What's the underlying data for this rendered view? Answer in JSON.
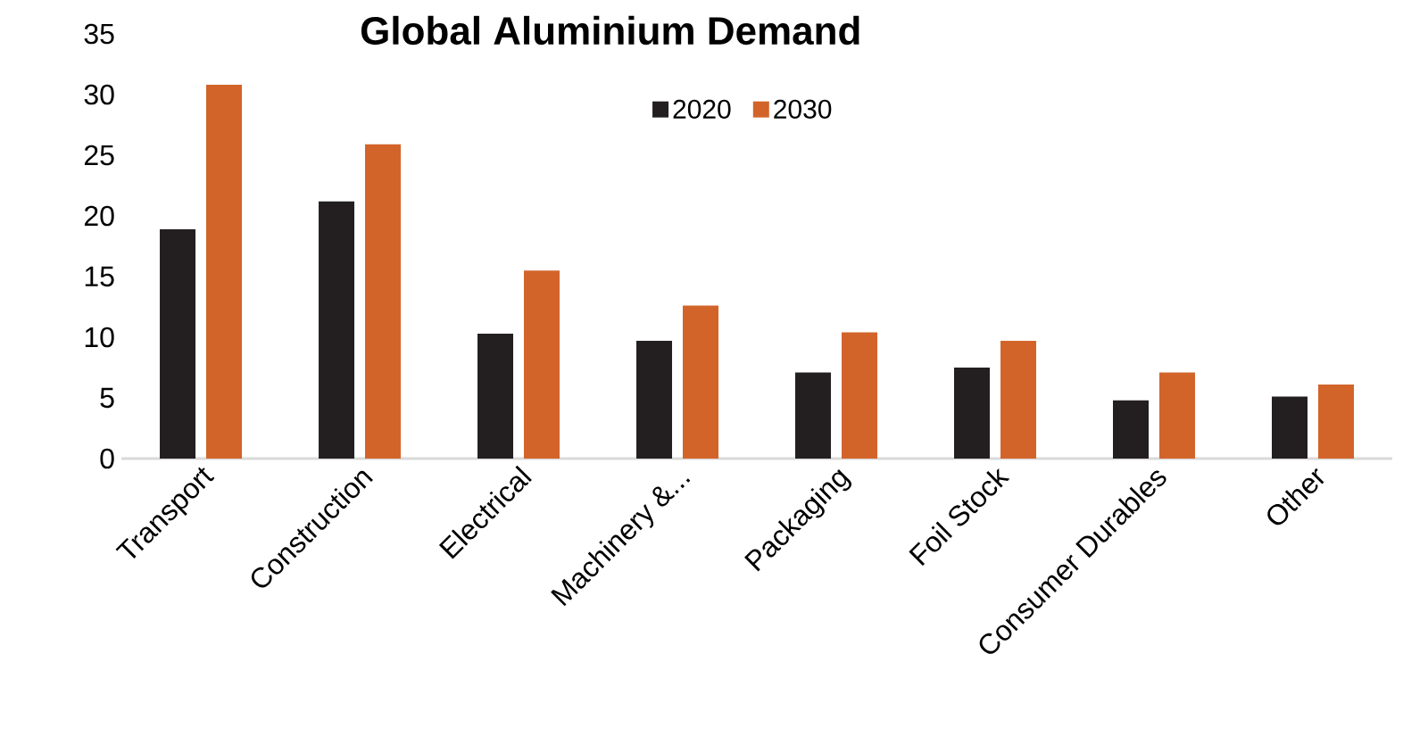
{
  "chart_data": {
    "type": "bar",
    "title": "Global Aluminium Demand",
    "categories": [
      "Transport",
      "Construction",
      "Electrical",
      "Machinery &...",
      "Packaging",
      "Foil Stock",
      "Consumer Durables",
      "Other"
    ],
    "series": [
      {
        "name": "2020",
        "color": "#231f20",
        "values": [
          18.9,
          21.2,
          10.3,
          9.7,
          7.1,
          7.5,
          4.8,
          5.1
        ]
      },
      {
        "name": "2030",
        "color": "#d2642a",
        "values": [
          30.8,
          25.9,
          15.5,
          12.6,
          10.4,
          9.7,
          7.1,
          6.1
        ]
      }
    ],
    "ylim": [
      0,
      35
    ],
    "yticks": [
      0,
      5,
      10,
      15,
      20,
      25,
      30,
      35
    ],
    "grid": false,
    "legend": "top"
  }
}
